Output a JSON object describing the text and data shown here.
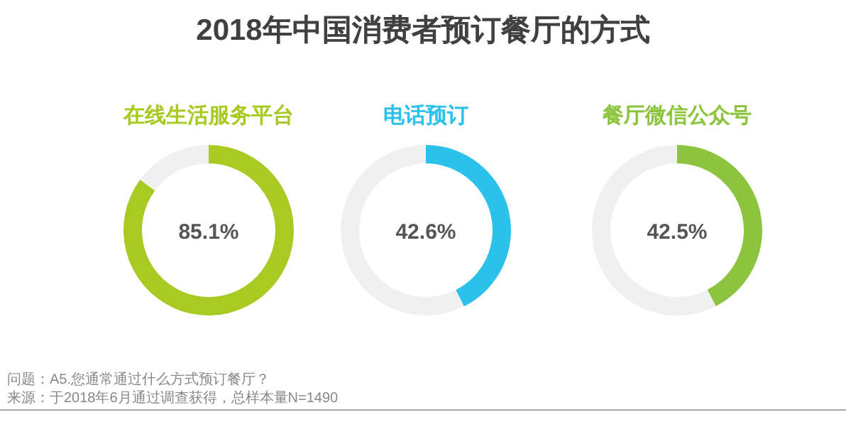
{
  "chart_data": [
    {
      "type": "donut",
      "categories": [
        "在线生活服务平台",
        null
      ],
      "values": [
        85.1,
        14.9
      ],
      "colors": [
        "#a9c923",
        "#f0f0f0"
      ],
      "annotations": [
        "85.1%"
      ]
    },
    {
      "type": "donut",
      "categories": [
        "电话预订",
        null
      ],
      "values": [
        42.6,
        57.4
      ],
      "colors": [
        "#2bc1ea",
        "#f0f0f0"
      ],
      "annotations": [
        "42.6%"
      ]
    },
    {
      "type": "donut",
      "categories": [
        "餐厅微信公众号",
        null
      ],
      "values": [
        42.5,
        57.5
      ],
      "colors": [
        "#8cc43f",
        "#f0f0f0"
      ],
      "annotations": [
        "42.5%"
      ]
    },
    {
      "type": "other",
      "title": "2018年中国消费者预订餐厅的方式",
      "annotations": [
        "问题：A5.您通常通过什么方式预订餐厅？",
        "来源：于2018年6月通过调查获得，总样本量N=1490"
      ]
    }
  ]
}
